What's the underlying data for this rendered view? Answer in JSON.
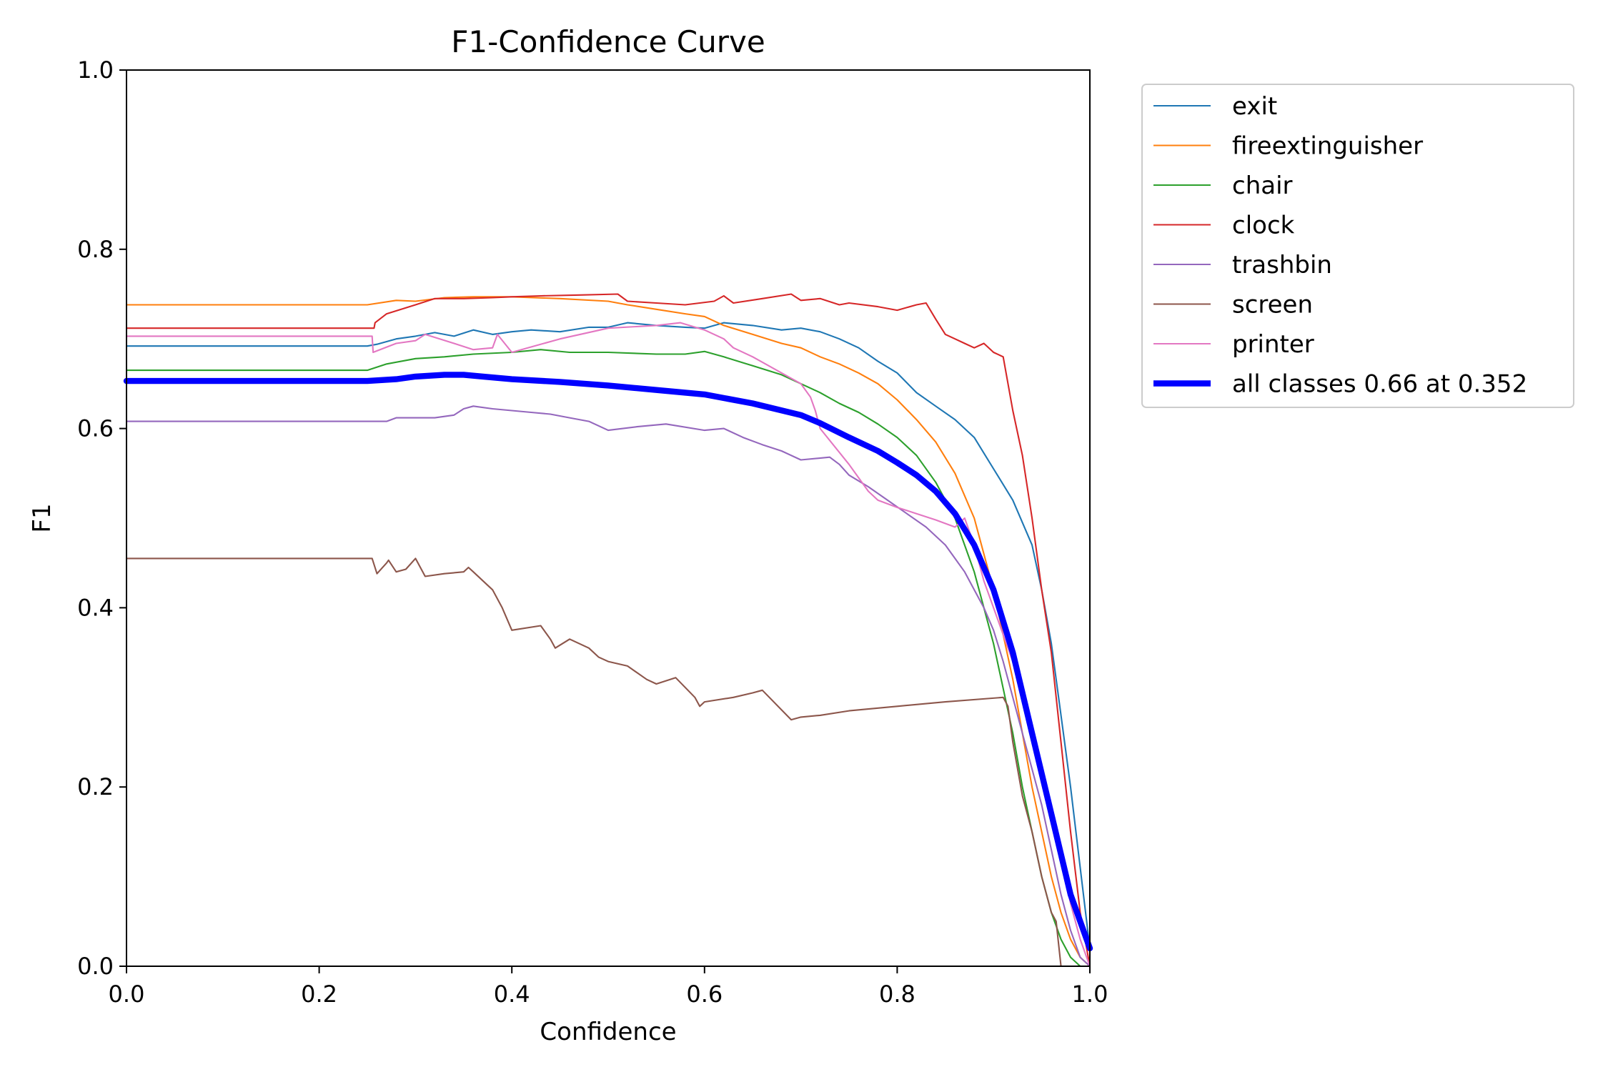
{
  "chart_data": {
    "type": "line",
    "title": "F1-Confidence Curve",
    "xlabel": "Confidence",
    "ylabel": "F1",
    "xlim": [
      0,
      1
    ],
    "ylim": [
      0,
      1
    ],
    "xticks": [
      "0.0",
      "0.2",
      "0.4",
      "0.6",
      "0.8",
      "1.0"
    ],
    "yticks": [
      "0.0",
      "0.2",
      "0.4",
      "0.6",
      "0.8",
      "1.0"
    ],
    "grid": false,
    "legend_position": "outside-top-right",
    "series": [
      {
        "name": "exit",
        "color": "#1f77b4",
        "width": 1.5,
        "x": [
          0,
          0.25,
          0.26,
          0.28,
          0.3,
          0.32,
          0.34,
          0.36,
          0.38,
          0.4,
          0.42,
          0.45,
          0.48,
          0.5,
          0.52,
          0.55,
          0.58,
          0.6,
          0.62,
          0.65,
          0.68,
          0.7,
          0.72,
          0.74,
          0.76,
          0.78,
          0.8,
          0.82,
          0.84,
          0.86,
          0.88,
          0.9,
          0.92,
          0.94,
          0.95,
          0.96,
          0.97,
          0.98,
          0.99,
          1.0
        ],
        "y": [
          0.692,
          0.692,
          0.694,
          0.7,
          0.703,
          0.707,
          0.703,
          0.71,
          0.705,
          0.708,
          0.71,
          0.708,
          0.713,
          0.713,
          0.718,
          0.715,
          0.713,
          0.712,
          0.718,
          0.715,
          0.71,
          0.712,
          0.708,
          0.7,
          0.69,
          0.675,
          0.662,
          0.64,
          0.625,
          0.61,
          0.59,
          0.555,
          0.52,
          0.47,
          0.42,
          0.36,
          0.28,
          0.2,
          0.11,
          0.02
        ]
      },
      {
        "name": "fireextinguisher",
        "color": "#ff7f0e",
        "width": 1.5,
        "x": [
          0,
          0.25,
          0.28,
          0.3,
          0.33,
          0.36,
          0.4,
          0.45,
          0.5,
          0.52,
          0.55,
          0.58,
          0.6,
          0.62,
          0.65,
          0.68,
          0.7,
          0.72,
          0.74,
          0.76,
          0.78,
          0.8,
          0.82,
          0.84,
          0.86,
          0.88,
          0.9,
          0.92,
          0.93,
          0.94,
          0.95,
          0.96,
          0.97,
          0.98,
          0.99,
          1.0
        ],
        "y": [
          0.738,
          0.738,
          0.743,
          0.742,
          0.746,
          0.747,
          0.747,
          0.745,
          0.742,
          0.738,
          0.733,
          0.728,
          0.725,
          0.715,
          0.705,
          0.695,
          0.69,
          0.68,
          0.672,
          0.662,
          0.65,
          0.632,
          0.61,
          0.585,
          0.55,
          0.5,
          0.42,
          0.32,
          0.26,
          0.2,
          0.15,
          0.1,
          0.06,
          0.03,
          0.01,
          0.0
        ]
      },
      {
        "name": "chair",
        "color": "#2ca02c",
        "width": 1.5,
        "x": [
          0,
          0.25,
          0.27,
          0.3,
          0.33,
          0.36,
          0.4,
          0.43,
          0.46,
          0.5,
          0.55,
          0.58,
          0.6,
          0.62,
          0.65,
          0.68,
          0.7,
          0.72,
          0.74,
          0.76,
          0.78,
          0.8,
          0.82,
          0.84,
          0.86,
          0.88,
          0.9,
          0.92,
          0.93,
          0.94,
          0.95,
          0.96,
          0.97,
          0.98,
          0.99,
          1.0
        ],
        "y": [
          0.665,
          0.665,
          0.672,
          0.678,
          0.68,
          0.683,
          0.685,
          0.688,
          0.685,
          0.685,
          0.683,
          0.683,
          0.686,
          0.68,
          0.67,
          0.66,
          0.65,
          0.64,
          0.628,
          0.618,
          0.605,
          0.59,
          0.57,
          0.54,
          0.5,
          0.44,
          0.36,
          0.26,
          0.2,
          0.15,
          0.1,
          0.06,
          0.03,
          0.01,
          0.0,
          0.0
        ]
      },
      {
        "name": "clock",
        "color": "#d62728",
        "width": 1.5,
        "x": [
          0,
          0.257,
          0.258,
          0.27,
          0.3,
          0.32,
          0.35,
          0.38,
          0.4,
          0.43,
          0.47,
          0.51,
          0.52,
          0.55,
          0.58,
          0.61,
          0.62,
          0.63,
          0.66,
          0.69,
          0.7,
          0.72,
          0.74,
          0.75,
          0.78,
          0.8,
          0.82,
          0.83,
          0.84,
          0.85,
          0.86,
          0.87,
          0.88,
          0.89,
          0.9,
          0.91,
          0.92,
          0.93,
          0.94,
          0.95,
          0.96,
          0.97,
          0.98,
          0.99,
          1.0
        ],
        "y": [
          0.712,
          0.712,
          0.718,
          0.728,
          0.738,
          0.745,
          0.745,
          0.746,
          0.747,
          0.748,
          0.749,
          0.75,
          0.742,
          0.74,
          0.738,
          0.742,
          0.748,
          0.74,
          0.745,
          0.75,
          0.743,
          0.745,
          0.738,
          0.74,
          0.736,
          0.732,
          0.738,
          0.74,
          0.722,
          0.705,
          0.7,
          0.695,
          0.69,
          0.695,
          0.685,
          0.68,
          0.62,
          0.57,
          0.5,
          0.42,
          0.35,
          0.25,
          0.15,
          0.06,
          0.0
        ]
      },
      {
        "name": "trashbin",
        "color": "#9467bd",
        "width": 1.5,
        "x": [
          0,
          0.27,
          0.28,
          0.3,
          0.32,
          0.34,
          0.35,
          0.36,
          0.38,
          0.4,
          0.42,
          0.44,
          0.46,
          0.48,
          0.5,
          0.53,
          0.56,
          0.6,
          0.62,
          0.64,
          0.66,
          0.68,
          0.7,
          0.73,
          0.74,
          0.75,
          0.77,
          0.79,
          0.81,
          0.83,
          0.85,
          0.86,
          0.87,
          0.88,
          0.89,
          0.9,
          0.91,
          0.92,
          0.93,
          0.94,
          0.95,
          0.96,
          0.97,
          0.98,
          0.99,
          1.0
        ],
        "y": [
          0.608,
          0.608,
          0.612,
          0.612,
          0.612,
          0.615,
          0.622,
          0.625,
          0.622,
          0.62,
          0.618,
          0.616,
          0.612,
          0.608,
          0.598,
          0.602,
          0.605,
          0.598,
          0.6,
          0.59,
          0.582,
          0.575,
          0.565,
          0.568,
          0.56,
          0.548,
          0.535,
          0.52,
          0.505,
          0.49,
          0.47,
          0.455,
          0.44,
          0.42,
          0.4,
          0.375,
          0.34,
          0.3,
          0.26,
          0.22,
          0.18,
          0.13,
          0.08,
          0.04,
          0.01,
          0.0
        ]
      },
      {
        "name": "screen",
        "color": "#8c564b",
        "width": 1.5,
        "x": [
          0,
          0.25,
          0.255,
          0.26,
          0.27,
          0.272,
          0.28,
          0.29,
          0.3,
          0.31,
          0.33,
          0.35,
          0.355,
          0.36,
          0.37,
          0.38,
          0.39,
          0.4,
          0.43,
          0.44,
          0.445,
          0.46,
          0.48,
          0.49,
          0.5,
          0.52,
          0.54,
          0.55,
          0.57,
          0.59,
          0.595,
          0.6,
          0.63,
          0.65,
          0.66,
          0.69,
          0.7,
          0.72,
          0.75,
          0.8,
          0.85,
          0.91,
          0.915,
          0.92,
          0.93,
          0.94,
          0.95,
          0.96,
          0.965,
          0.97,
          0.98,
          1.0
        ],
        "y": [
          0.455,
          0.455,
          0.455,
          0.438,
          0.45,
          0.453,
          0.44,
          0.443,
          0.455,
          0.435,
          0.438,
          0.44,
          0.445,
          0.44,
          0.43,
          0.42,
          0.4,
          0.375,
          0.38,
          0.365,
          0.355,
          0.365,
          0.355,
          0.345,
          0.34,
          0.335,
          0.32,
          0.315,
          0.322,
          0.3,
          0.29,
          0.295,
          0.3,
          0.305,
          0.308,
          0.275,
          0.278,
          0.28,
          0.285,
          0.29,
          0.295,
          0.3,
          0.29,
          0.25,
          0.19,
          0.15,
          0.1,
          0.06,
          0.05,
          0.0,
          0.0,
          0.0
        ]
      },
      {
        "name": "printer",
        "color": "#e377c2",
        "width": 1.5,
        "x": [
          0,
          0.255,
          0.256,
          0.28,
          0.3,
          0.31,
          0.34,
          0.36,
          0.38,
          0.385,
          0.4,
          0.45,
          0.5,
          0.55,
          0.575,
          0.6,
          0.62,
          0.63,
          0.65,
          0.7,
          0.71,
          0.715,
          0.72,
          0.75,
          0.76,
          0.77,
          0.78,
          0.8,
          0.82,
          0.84,
          0.86,
          0.87,
          0.88,
          0.89,
          0.9,
          0.91,
          0.92,
          0.93,
          0.94,
          0.95,
          0.96,
          0.97,
          0.98,
          0.99,
          1.0
        ],
        "y": [
          0.703,
          0.703,
          0.685,
          0.695,
          0.698,
          0.705,
          0.695,
          0.688,
          0.69,
          0.705,
          0.685,
          0.7,
          0.712,
          0.715,
          0.718,
          0.71,
          0.7,
          0.69,
          0.68,
          0.65,
          0.635,
          0.62,
          0.6,
          0.56,
          0.545,
          0.53,
          0.52,
          0.512,
          0.505,
          0.498,
          0.49,
          0.5,
          0.47,
          0.43,
          0.4,
          0.37,
          0.34,
          0.3,
          0.26,
          0.21,
          0.16,
          0.12,
          0.07,
          0.03,
          0.0
        ]
      },
      {
        "name": "all classes 0.66 at 0.352",
        "color": "#0000ff",
        "width": 6,
        "x": [
          0,
          0.1,
          0.2,
          0.25,
          0.28,
          0.3,
          0.33,
          0.35,
          0.37,
          0.4,
          0.45,
          0.5,
          0.55,
          0.6,
          0.65,
          0.7,
          0.72,
          0.75,
          0.78,
          0.8,
          0.82,
          0.84,
          0.86,
          0.88,
          0.9,
          0.92,
          0.94,
          0.96,
          0.98,
          1.0
        ],
        "y": [
          0.653,
          0.653,
          0.653,
          0.653,
          0.655,
          0.658,
          0.66,
          0.66,
          0.658,
          0.655,
          0.652,
          0.648,
          0.643,
          0.638,
          0.628,
          0.615,
          0.606,
          0.59,
          0.575,
          0.562,
          0.548,
          0.53,
          0.505,
          0.47,
          0.42,
          0.35,
          0.26,
          0.17,
          0.08,
          0.02
        ]
      }
    ]
  },
  "legend": {
    "entries": [
      "exit",
      "fireextinguisher",
      "chair",
      "clock",
      "trashbin",
      "screen",
      "printer",
      "all classes 0.66 at 0.352"
    ]
  }
}
